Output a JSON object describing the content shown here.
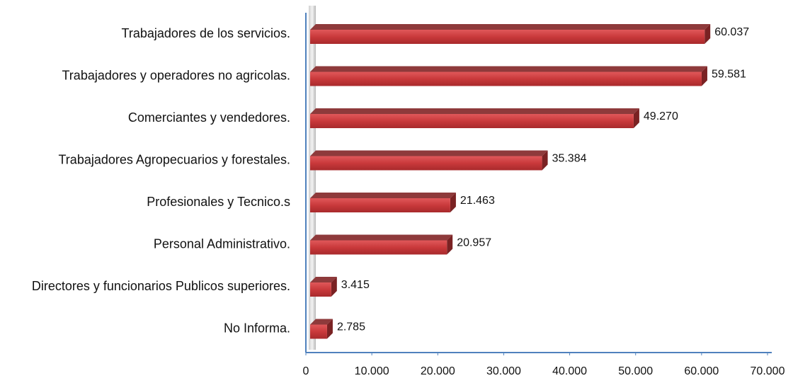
{
  "chart_data": {
    "type": "bar",
    "orientation": "horizontal",
    "categories": [
      "Trabajadores de los servicios.",
      "Trabajadores y operadores no agricolas.",
      "Comerciantes y vendedores.",
      "Trabajadores Agropecuarios y forestales.",
      "Profesionales y Tecnico.s",
      "Personal Administrativo.",
      "Directores y funcionarios Publicos superiores.",
      "No Informa."
    ],
    "values": [
      60037,
      59581,
      49270,
      35384,
      21463,
      20957,
      3415,
      2785
    ],
    "value_labels": [
      "60.037",
      "59.581",
      "49.270",
      "35.384",
      "21.463",
      "20.957",
      "3.415",
      "2.785"
    ],
    "color": "#c9393b",
    "xlim": [
      0,
      70000
    ],
    "xticks": [
      0,
      {
        "value": 10000,
        "label": "10.000"
      },
      {
        "value": 20000,
        "label": "20.000"
      },
      {
        "value": 30000,
        "label": "30.000"
      },
      {
        "value": 40000,
        "label": "40.000"
      },
      {
        "value": 50000,
        "label": "50.000"
      },
      {
        "value": 60000,
        "label": "60.000"
      },
      {
        "value": 70000,
        "label": "70.000"
      }
    ],
    "grid": false
  }
}
